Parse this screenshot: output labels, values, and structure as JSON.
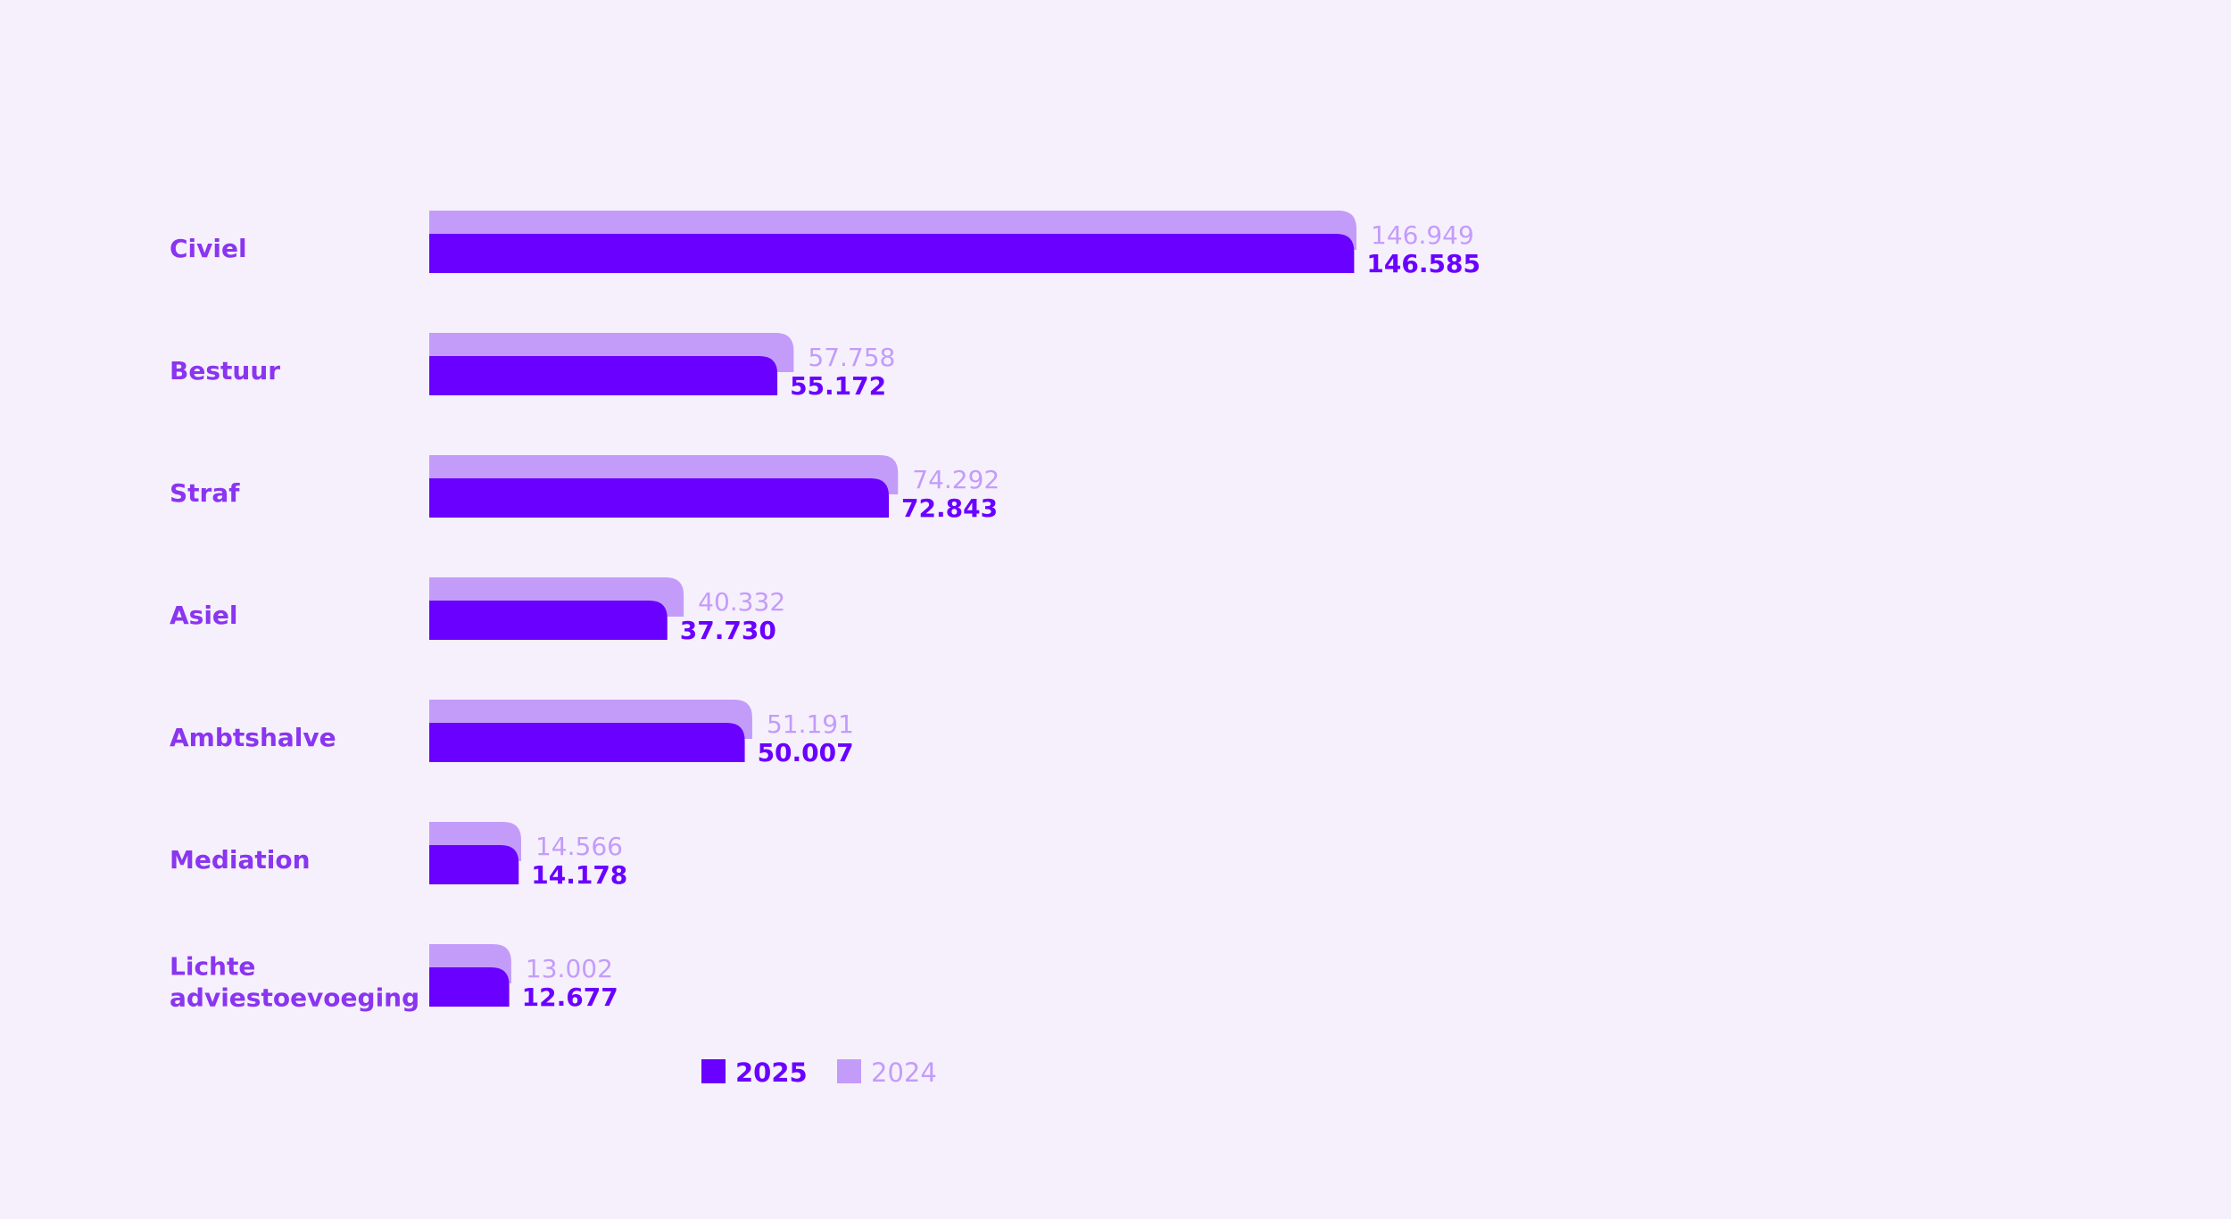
{
  "chart_data": {
    "type": "bar",
    "orientation": "horizontal",
    "categories": [
      [
        "Civiel"
      ],
      [
        "Bestuur"
      ],
      [
        "Straf"
      ],
      [
        "Asiel"
      ],
      [
        "Ambtshalve"
      ],
      [
        "Mediation"
      ],
      [
        "Lichte",
        "adviestoevoeging"
      ]
    ],
    "series": [
      {
        "name": "2025",
        "color": "#6a00ff",
        "values": [
          146585,
          55172,
          72843,
          37730,
          50007,
          14178,
          12677
        ],
        "labels": [
          "146.585",
          "55.172",
          "72.843",
          "37.730",
          "50.007",
          "14.178",
          "12.677"
        ]
      },
      {
        "name": "2024",
        "color": "#c39cfa",
        "values": [
          146949,
          57758,
          74292,
          40332,
          51191,
          14566,
          13002
        ],
        "labels": [
          "146.949",
          "57.758",
          "74.292",
          "40.332",
          "51.191",
          "14.566",
          "13.002"
        ]
      }
    ],
    "xlim": [
      0,
      146949
    ],
    "grid": false,
    "legend_position": "bottom"
  },
  "colors": {
    "background": "#f6f0fd",
    "category_label": "#8a35f0"
  }
}
